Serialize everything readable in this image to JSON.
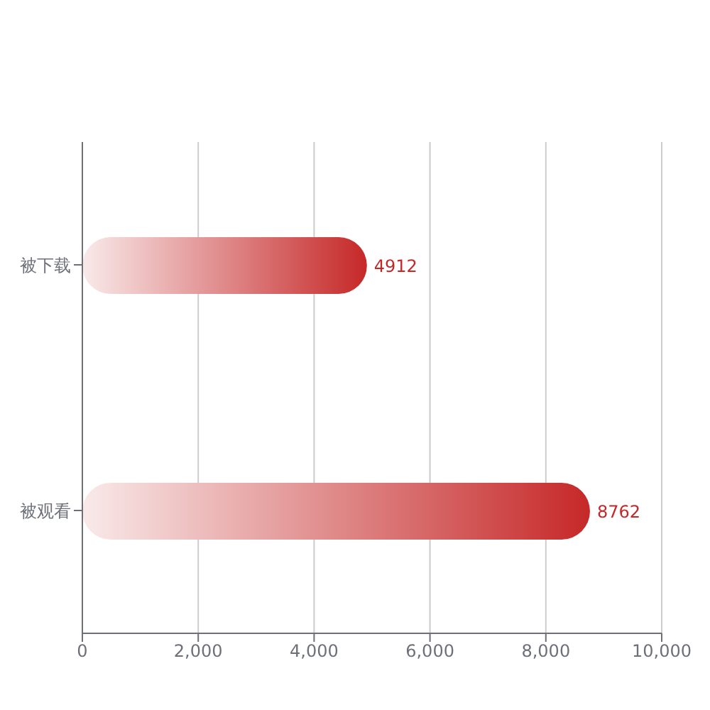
{
  "chart_data": {
    "type": "bar",
    "orientation": "horizontal",
    "categories": [
      "被下载",
      "被观看"
    ],
    "values": [
      4912,
      8762
    ],
    "color": "#c62828",
    "xlim": [
      0,
      10000
    ],
    "xticks": [
      0,
      {
        "value": 2000,
        "label": "2,000"
      },
      {
        "value": 4000,
        "label": "4,000"
      },
      {
        "value": 6000,
        "label": "6,000"
      },
      {
        "value": 8000,
        "label": "8,000"
      },
      {
        "value": 10000,
        "label": "10,000"
      }
    ],
    "grid": "x",
    "data_labels": true
  }
}
